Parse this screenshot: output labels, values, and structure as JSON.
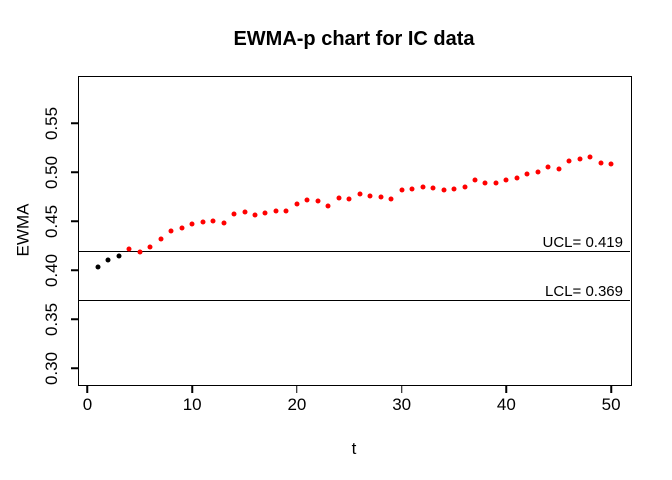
{
  "chart_data": {
    "type": "scatter",
    "title": "EWMA-p chart for IC data",
    "xlabel": "t",
    "ylabel": "EWMA",
    "x": [
      1,
      2,
      3,
      4,
      5,
      6,
      7,
      8,
      9,
      10,
      11,
      12,
      13,
      14,
      15,
      16,
      17,
      18,
      19,
      20,
      21,
      22,
      23,
      24,
      25,
      26,
      27,
      28,
      29,
      30,
      31,
      32,
      33,
      34,
      35,
      36,
      37,
      38,
      39,
      40,
      41,
      42,
      43,
      44,
      45,
      46,
      47,
      48,
      49,
      50
    ],
    "values": [
      0.403,
      0.41,
      0.414,
      0.422,
      0.419,
      0.424,
      0.432,
      0.44,
      0.443,
      0.447,
      0.449,
      0.45,
      0.448,
      0.457,
      0.459,
      0.456,
      0.458,
      0.46,
      0.46,
      0.468,
      0.472,
      0.471,
      0.465,
      0.474,
      0.473,
      0.478,
      0.476,
      0.475,
      0.473,
      0.482,
      0.483,
      0.485,
      0.484,
      0.482,
      0.483,
      0.485,
      0.492,
      0.489,
      0.489,
      0.492,
      0.494,
      0.498,
      0.5,
      0.505,
      0.503,
      0.511,
      0.513,
      0.515,
      0.509,
      0.508
    ],
    "initial_black_points": 3,
    "point_color_initial": "#000000",
    "point_color_default": "#FF0000",
    "line_color": "#000000",
    "ucl": {
      "value": 0.419,
      "label": "UCL= 0.419"
    },
    "lcl": {
      "value": 0.369,
      "label": "LCL= 0.369"
    },
    "x_ticks": [
      "0",
      "10",
      "20",
      "30",
      "40",
      "50"
    ],
    "y_ticks": [
      "0.30",
      "0.35",
      "0.40",
      "0.45",
      "0.50",
      "0.55"
    ],
    "xlim": [
      -0.9,
      51.8
    ],
    "ylim": [
      0.284,
      0.598
    ],
    "grid": false,
    "legend": null
  }
}
